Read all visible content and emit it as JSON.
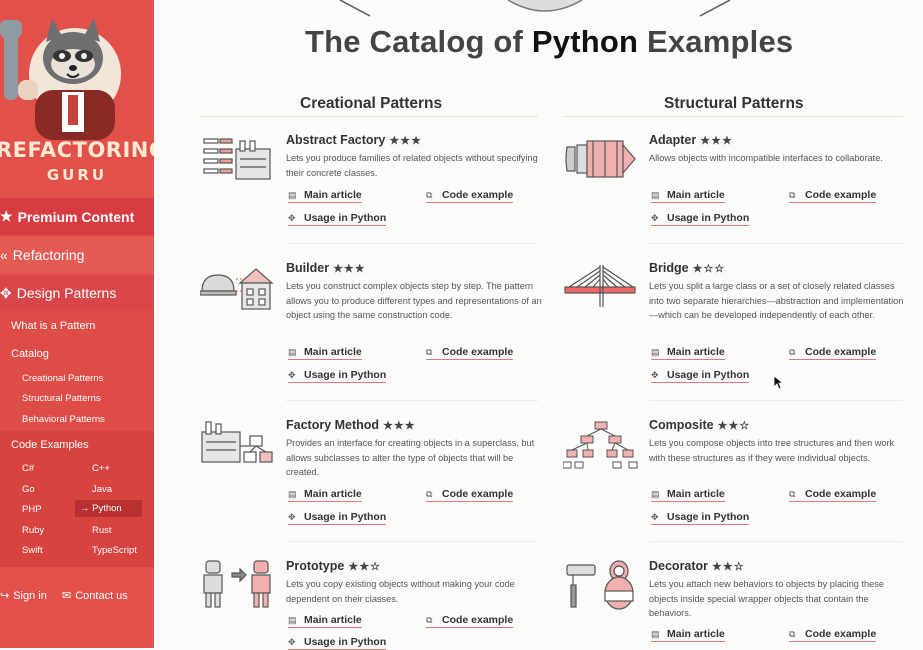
{
  "logo": {
    "line1": "REFACTORING",
    "line2": "GURU"
  },
  "sidebar": {
    "premium": "Premium Content",
    "refactoring": "Refactoring",
    "design_patterns": "Design Patterns",
    "what_is": "What is a Pattern",
    "catalog": "Catalog",
    "creational": "Creational Patterns",
    "structural": "Structural Patterns",
    "behavioral": "Behavioral Patterns",
    "code_examples": "Code Examples",
    "langs": [
      "C#",
      "C++",
      "Go",
      "Java",
      "PHP",
      "Python",
      "Ruby",
      "Rust",
      "Swift",
      "TypeScript"
    ],
    "active_lang": "Python",
    "sign_in": "Sign in",
    "contact": "Contact us"
  },
  "title": {
    "part1": "The Catalog of",
    "highlight": "Python",
    "part2": "Examples"
  },
  "sections": {
    "creational": "Creational Patterns",
    "structural": "Structural Patterns"
  },
  "links": {
    "main": "Main article",
    "code": "Code example",
    "usage": "Usage in Python"
  },
  "patterns": {
    "abstract_factory": {
      "name": "Abstract Factory",
      "stars": "★★★",
      "desc": "Lets you produce families of related objects without specifying their concrete classes."
    },
    "builder": {
      "name": "Builder",
      "stars": "★★★",
      "desc": "Lets you construct complex objects step by step. The pattern allows you to produce different types and representations of an object using the same construction code."
    },
    "factory_method": {
      "name": "Factory Method",
      "stars": "★★★",
      "desc": "Provides an interface for creating objects in a superclass, but allows subclasses to alter the type of objects that will be created."
    },
    "prototype": {
      "name": "Prototype",
      "stars": "★★☆",
      "desc": "Lets you copy existing objects without making your code dependent on their classes."
    },
    "adapter": {
      "name": "Adapter",
      "stars": "★★★",
      "desc": "Allows objects with incompatible interfaces to collaborate."
    },
    "bridge": {
      "name": "Bridge",
      "stars": "★☆☆",
      "desc": "Lets you split a large class or a set of closely related classes into two separate hierarchies—abstraction and implementation—which can be developed independently of each other."
    },
    "composite": {
      "name": "Composite",
      "stars": "★★☆",
      "desc": "Lets you compose objects into tree structures and then work with these structures as if they were individual objects."
    },
    "decorator": {
      "name": "Decorator",
      "stars": "★★☆",
      "desc": "Lets you attach new behaviors to objects by placing these objects inside special wrapper objects that contain the behaviors."
    }
  },
  "colors": {
    "sidebar": "#e2504a",
    "accent": "#d73c43",
    "underline": "#e07a75"
  }
}
